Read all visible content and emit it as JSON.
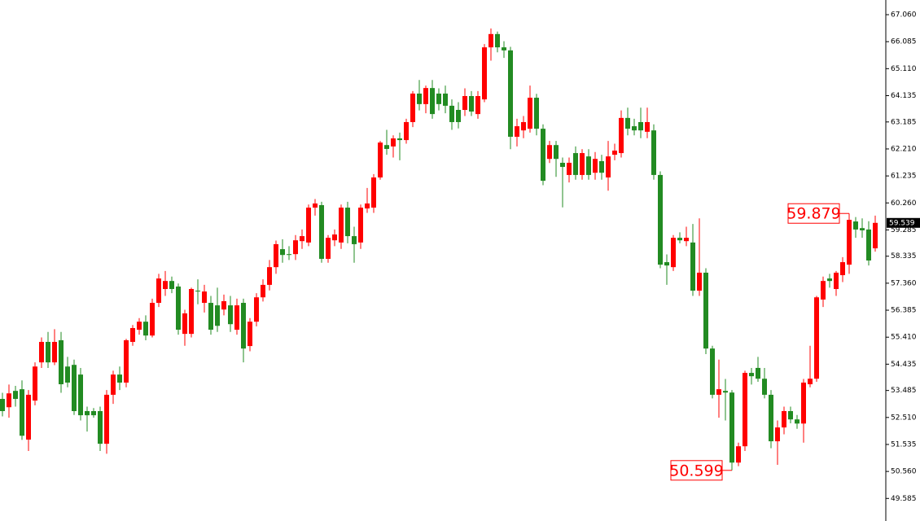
{
  "chart_data": {
    "type": "candlestick",
    "up_color": "#ff0000",
    "down_color": "#228b22",
    "ylim": [
      48.77,
      67.59
    ],
    "yticks": [
      {
        "value": 67.06,
        "label": "67.060"
      },
      66.085,
      {
        "value": 65.11,
        "label": "65.110"
      },
      64.135,
      63.185,
      {
        "value": 62.21,
        "label": "62.210"
      },
      61.235,
      {
        "value": 60.26,
        "label": "60.260"
      },
      59.285,
      58.335,
      {
        "value": 57.36,
        "label": "57.360"
      },
      56.385,
      {
        "value": 55.41,
        "label": "55.410"
      },
      54.435,
      53.485,
      {
        "value": 52.51,
        "label": "52.510"
      },
      51.535,
      {
        "value": 50.56,
        "label": "50.560"
      },
      49.585
    ],
    "candles": [
      [
        53.18,
        53.4,
        52.55,
        52.74
      ],
      [
        52.88,
        53.7,
        52.5,
        53.38
      ],
      [
        53.47,
        53.65,
        52.9,
        53.18
      ],
      [
        53.53,
        53.85,
        51.7,
        51.85
      ],
      [
        51.71,
        53.5,
        51.3,
        53.33
      ],
      [
        53.12,
        54.5,
        52.95,
        54.35
      ],
      [
        54.5,
        55.4,
        54.3,
        55.24
      ],
      [
        55.24,
        55.6,
        54.3,
        54.5
      ],
      [
        54.5,
        55.7,
        54.4,
        55.24
      ],
      [
        55.3,
        55.6,
        53.4,
        53.71
      ],
      [
        54.35,
        54.7,
        53.6,
        53.77
      ],
      [
        54.41,
        54.6,
        52.6,
        52.74
      ],
      [
        54.06,
        54.3,
        52.4,
        52.59
      ],
      [
        52.74,
        52.9,
        52.0,
        52.59
      ],
      [
        52.74,
        52.85,
        52.5,
        52.59
      ],
      [
        52.74,
        52.9,
        51.3,
        51.56
      ],
      [
        51.56,
        53.5,
        51.2,
        53.33
      ],
      [
        53.33,
        54.2,
        53.0,
        54.06
      ],
      [
        54.06,
        54.35,
        53.5,
        53.77
      ],
      [
        53.77,
        55.35,
        53.6,
        55.3
      ],
      [
        55.24,
        55.85,
        55.1,
        55.74
      ],
      [
        55.68,
        56.1,
        55.5,
        55.97
      ],
      [
        55.97,
        56.2,
        55.3,
        55.47
      ],
      [
        55.47,
        56.8,
        55.4,
        56.65
      ],
      [
        56.65,
        57.7,
        56.5,
        57.53
      ],
      [
        57.15,
        57.8,
        56.9,
        57.44
      ],
      [
        57.44,
        57.6,
        57.0,
        57.15
      ],
      [
        57.24,
        57.35,
        55.5,
        55.68
      ],
      [
        55.53,
        56.4,
        55.1,
        56.27
      ],
      [
        55.53,
        57.2,
        55.4,
        57.15
      ],
      [
        57.09,
        57.5,
        56.6,
        57.06
      ],
      [
        56.65,
        57.3,
        56.3,
        57.06
      ],
      [
        56.65,
        56.9,
        55.5,
        55.68
      ],
      [
        56.56,
        57.2,
        55.6,
        55.82
      ],
      [
        56.41,
        56.95,
        56.2,
        56.71
      ],
      [
        56.56,
        56.9,
        55.6,
        55.88
      ],
      [
        55.68,
        56.8,
        55.5,
        56.56
      ],
      [
        56.65,
        56.8,
        54.5,
        55.0
      ],
      [
        55.09,
        56.1,
        54.9,
        55.97
      ],
      [
        55.97,
        57.0,
        55.8,
        56.85
      ],
      [
        56.85,
        57.5,
        56.7,
        57.3
      ],
      [
        57.3,
        58.2,
        57.1,
        57.94
      ],
      [
        57.94,
        58.9,
        57.7,
        58.77
      ],
      [
        58.59,
        58.95,
        58.1,
        58.38
      ],
      [
        58.41,
        58.7,
        58.2,
        58.38
      ],
      [
        58.41,
        59.1,
        58.2,
        58.91
      ],
      [
        58.88,
        59.3,
        58.6,
        59.06
      ],
      [
        58.83,
        60.2,
        58.7,
        60.09
      ],
      [
        60.09,
        60.4,
        59.8,
        60.24
      ],
      [
        60.18,
        60.3,
        58.1,
        58.24
      ],
      [
        58.24,
        59.1,
        58.1,
        59.0
      ],
      [
        58.91,
        59.3,
        58.7,
        59.12
      ],
      [
        58.83,
        60.2,
        58.6,
        60.09
      ],
      [
        60.09,
        60.3,
        58.8,
        59.06
      ],
      [
        59.06,
        59.4,
        58.1,
        58.77
      ],
      [
        58.83,
        60.2,
        58.6,
        60.09
      ],
      [
        60.06,
        60.8,
        59.9,
        60.24
      ],
      [
        60.09,
        61.3,
        59.9,
        61.18
      ],
      [
        61.18,
        62.5,
        61.1,
        62.44
      ],
      [
        62.35,
        62.9,
        62.0,
        62.21
      ],
      [
        62.3,
        62.7,
        61.9,
        62.59
      ],
      [
        62.59,
        62.8,
        61.8,
        62.53
      ],
      [
        62.53,
        63.3,
        62.4,
        63.18
      ],
      [
        63.18,
        64.3,
        63.0,
        64.21
      ],
      [
        64.21,
        64.7,
        63.6,
        63.83
      ],
      [
        63.83,
        64.5,
        63.5,
        64.41
      ],
      [
        64.41,
        64.7,
        63.3,
        63.47
      ],
      [
        64.21,
        64.4,
        63.6,
        63.83
      ],
      [
        64.21,
        64.5,
        63.5,
        63.77
      ],
      [
        63.77,
        64.0,
        62.9,
        63.18
      ],
      [
        63.62,
        63.9,
        62.95,
        63.18
      ],
      [
        63.62,
        64.4,
        63.4,
        64.12
      ],
      [
        64.12,
        64.3,
        63.4,
        63.56
      ],
      [
        63.47,
        64.3,
        63.3,
        64.12
      ],
      [
        64.0,
        66.0,
        63.9,
        65.88
      ],
      [
        65.88,
        66.56,
        65.4,
        66.36
      ],
      [
        66.36,
        66.45,
        65.7,
        65.88
      ],
      [
        65.88,
        66.1,
        65.5,
        65.77
      ],
      [
        65.77,
        65.9,
        62.2,
        62.65
      ],
      [
        62.65,
        63.3,
        62.3,
        63.03
      ],
      [
        62.88,
        63.4,
        62.6,
        63.18
      ],
      [
        62.94,
        64.5,
        62.8,
        64.06
      ],
      [
        64.06,
        64.2,
        62.7,
        62.94
      ],
      [
        62.94,
        63.1,
        60.9,
        61.06
      ],
      [
        61.85,
        62.5,
        61.7,
        62.35
      ],
      [
        62.35,
        62.5,
        61.2,
        61.85
      ],
      [
        61.71,
        61.9,
        60.1,
        61.56
      ],
      [
        61.27,
        61.9,
        61.0,
        61.71
      ],
      [
        62.06,
        62.3,
        61.1,
        61.27
      ],
      [
        61.27,
        62.2,
        61.1,
        62.06
      ],
      [
        61.94,
        62.2,
        61.1,
        61.27
      ],
      [
        61.35,
        62.1,
        61.1,
        61.85
      ],
      [
        61.77,
        62.0,
        61.1,
        61.35
      ],
      [
        61.18,
        62.5,
        60.7,
        61.94
      ],
      [
        62.0,
        62.4,
        61.8,
        62.15
      ],
      [
        62.06,
        63.6,
        61.9,
        63.33
      ],
      [
        63.33,
        63.7,
        62.7,
        62.94
      ],
      [
        63.03,
        63.3,
        62.7,
        62.88
      ],
      [
        63.18,
        63.7,
        62.6,
        62.88
      ],
      [
        62.83,
        63.7,
        62.6,
        63.18
      ],
      [
        62.88,
        63.1,
        61.1,
        61.27
      ],
      [
        61.27,
        61.4,
        57.9,
        58.03
      ],
      [
        58.12,
        58.4,
        57.3,
        58.0
      ],
      [
        57.94,
        59.1,
        57.8,
        59.0
      ],
      [
        59.0,
        59.2,
        58.8,
        58.91
      ],
      [
        58.88,
        59.4,
        58.7,
        59.0
      ],
      [
        58.83,
        59.5,
        56.9,
        57.09
      ],
      [
        57.09,
        59.7,
        56.9,
        57.74
      ],
      [
        57.74,
        57.9,
        54.8,
        55.0
      ],
      [
        55.0,
        55.1,
        53.2,
        53.33
      ],
      [
        53.33,
        54.6,
        52.5,
        53.53
      ],
      [
        53.47,
        53.9,
        52.4,
        53.41
      ],
      [
        53.41,
        53.5,
        50.599,
        50.88
      ],
      [
        50.88,
        51.6,
        50.75,
        51.47
      ],
      [
        51.47,
        54.2,
        51.3,
        54.12
      ],
      [
        54.12,
        54.3,
        53.7,
        54.0
      ],
      [
        54.3,
        54.7,
        53.8,
        53.91
      ],
      [
        53.91,
        54.3,
        53.2,
        53.33
      ],
      [
        53.33,
        53.5,
        51.4,
        51.65
      ],
      [
        51.65,
        52.4,
        50.8,
        52.15
      ],
      [
        52.15,
        52.9,
        51.9,
        52.74
      ],
      [
        52.74,
        52.9,
        52.3,
        52.44
      ],
      [
        52.44,
        52.6,
        52.1,
        52.29
      ],
      [
        52.29,
        53.9,
        51.6,
        53.77
      ],
      [
        53.71,
        55.1,
        53.6,
        53.91
      ],
      [
        53.91,
        56.9,
        53.8,
        56.85
      ],
      [
        56.77,
        57.6,
        56.5,
        57.44
      ],
      [
        57.53,
        57.7,
        57.2,
        57.44
      ],
      [
        57.15,
        57.8,
        56.9,
        57.74
      ],
      [
        57.65,
        58.3,
        57.4,
        58.12
      ],
      [
        58.03,
        59.879,
        57.7,
        59.65
      ],
      [
        59.59,
        59.75,
        59.0,
        59.3
      ],
      [
        59.35,
        59.7,
        59.0,
        59.27
      ],
      [
        59.3,
        59.6,
        58.0,
        58.18
      ],
      [
        58.62,
        59.8,
        58.5,
        59.539
      ]
    ]
  }
}
